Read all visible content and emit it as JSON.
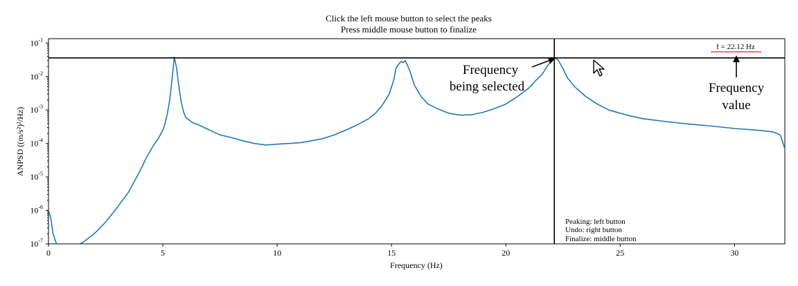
{
  "chart_data": {
    "type": "line",
    "title": "Click the left mouse button to select the peaks",
    "subtitle": "Press middle mouse button to finalize",
    "xlabel": "Frequency (Hz)",
    "ylabel": "ANPSD ((m/s²)²/Hz)",
    "xlim": [
      0,
      32.2
    ],
    "ylim": [
      1e-07,
      0.135
    ],
    "y_scale": "log",
    "grid": false,
    "x_ticks": [
      0,
      5,
      10,
      15,
      20,
      25,
      30
    ],
    "x_tick_labels": [
      "0",
      "5",
      "10",
      "15",
      "20",
      "25",
      "30"
    ],
    "y_ticks": [
      {
        "value": 1e-07,
        "base": "10",
        "exp": "-7"
      },
      {
        "value": 1e-06,
        "base": "10",
        "exp": "-6"
      },
      {
        "value": 1e-05,
        "base": "10",
        "exp": "-5"
      },
      {
        "value": 0.0001,
        "base": "10",
        "exp": "-4"
      },
      {
        "value": 0.001,
        "base": "10",
        "exp": "-3"
      },
      {
        "value": 0.01,
        "base": "10",
        "exp": "-2"
      },
      {
        "value": 0.1,
        "base": "10",
        "exp": "-1"
      }
    ],
    "series": [
      {
        "color": "#1f77b4",
        "x": [
          0,
          0.1,
          0.2,
          0.5,
          1,
          1.5,
          2,
          2.5,
          3,
          3.5,
          4,
          4.3,
          4.6,
          4.8,
          5.0,
          5.1,
          5.2,
          5.3,
          5.4,
          5.5,
          5.6,
          5.7,
          5.8,
          5.9,
          6.0,
          6.3,
          6.6,
          7,
          7.5,
          8,
          8.5,
          9,
          9.5,
          10,
          10.5,
          11,
          11.5,
          12,
          12.5,
          13,
          13.5,
          14,
          14.3,
          14.6,
          14.9,
          15.1,
          15.2,
          15.4,
          15.5,
          15.6,
          15.8,
          16.0,
          16.3,
          16.6,
          17,
          17.5,
          18,
          18.5,
          19,
          19.5,
          20,
          20.5,
          21,
          21.3,
          21.6,
          21.8,
          22.0,
          22.12,
          22.3,
          22.5,
          22.7,
          23,
          23.5,
          24,
          24.5,
          25,
          25.5,
          26,
          27,
          28,
          29,
          30,
          31,
          31.7,
          32.0,
          32.2
        ],
        "y": [
          1e-06,
          6e-07,
          2e-07,
          5e-08,
          8e-08,
          1.1e-07,
          2e-07,
          4.5e-07,
          1.2e-06,
          3.5e-06,
          1.5e-05,
          4e-05,
          9e-05,
          0.00014,
          0.00025,
          0.0004,
          0.0008,
          0.002,
          0.008,
          0.038,
          0.018,
          0.005,
          0.0018,
          0.0009,
          0.0006,
          0.00042,
          0.00035,
          0.00026,
          0.00018,
          0.00015,
          0.00012,
          0.0001,
          9e-05,
          9.5e-05,
          0.0001,
          0.000105,
          0.00012,
          0.00014,
          0.00018,
          0.00025,
          0.00036,
          0.00055,
          0.0008,
          0.0014,
          0.003,
          0.008,
          0.018,
          0.028,
          0.026,
          0.03,
          0.015,
          0.0055,
          0.0025,
          0.0015,
          0.0011,
          0.0008,
          0.0007,
          0.00072,
          0.00085,
          0.0011,
          0.0015,
          0.0025,
          0.0045,
          0.0075,
          0.012,
          0.02,
          0.03,
          0.038,
          0.03,
          0.017,
          0.009,
          0.005,
          0.0025,
          0.0015,
          0.001,
          0.0008,
          0.00065,
          0.00055,
          0.00045,
          0.00038,
          0.00033,
          0.00028,
          0.00025,
          0.00022,
          0.00018,
          7e-05
        ]
      }
    ],
    "crosshair": {
      "x": 22.12,
      "y": 0.036
    },
    "readout": "f = 22.12 Hz",
    "annotations": {
      "selected_line1": "Frequency",
      "selected_line2": "being selected",
      "value_line1": "Frequency",
      "value_line2": "value"
    },
    "instructions": [
      "Peaking: left button",
      "Undo: right button",
      "Finalize: middle button"
    ],
    "colors": {
      "line": "#1f77b4",
      "readout_underline": "#d62728"
    }
  }
}
